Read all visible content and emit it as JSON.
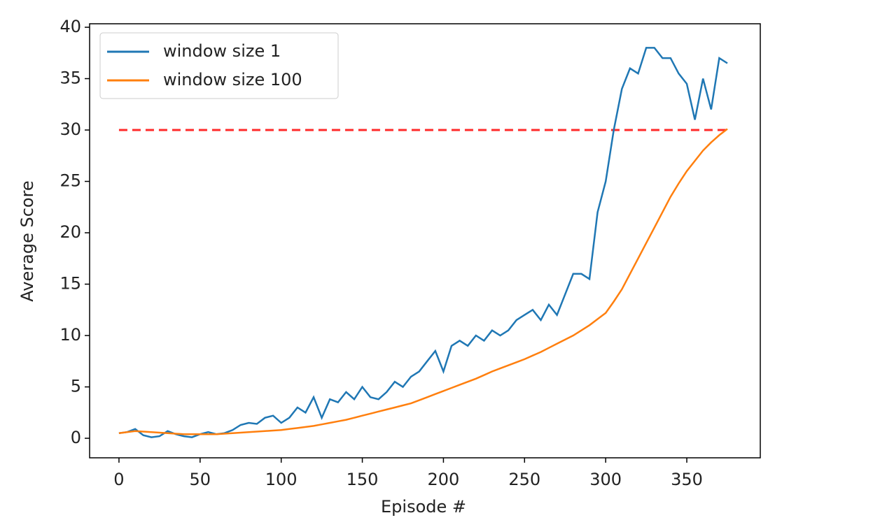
{
  "chart_data": {
    "type": "line",
    "xlabel": "Episode #",
    "ylabel": "Average Score",
    "x": [
      0,
      5,
      10,
      15,
      20,
      25,
      30,
      35,
      40,
      45,
      50,
      55,
      60,
      65,
      70,
      75,
      80,
      85,
      90,
      95,
      100,
      105,
      110,
      115,
      120,
      125,
      130,
      135,
      140,
      145,
      150,
      155,
      160,
      165,
      170,
      175,
      180,
      185,
      190,
      195,
      200,
      205,
      210,
      215,
      220,
      225,
      230,
      235,
      240,
      245,
      250,
      255,
      260,
      265,
      270,
      275,
      280,
      285,
      290,
      295,
      300,
      305,
      310,
      315,
      320,
      325,
      330,
      335,
      340,
      345,
      350,
      355,
      360,
      365,
      370,
      375
    ],
    "series": [
      {
        "name": "window size 1",
        "color": "#1f77b4",
        "values": [
          0.5,
          0.6,
          0.9,
          0.3,
          0.1,
          0.2,
          0.7,
          0.4,
          0.2,
          0.1,
          0.4,
          0.6,
          0.4,
          0.5,
          0.8,
          1.3,
          1.5,
          1.4,
          2.0,
          2.2,
          1.5,
          2.0,
          3.0,
          2.5,
          4.0,
          2.0,
          3.8,
          3.5,
          4.5,
          3.8,
          5.0,
          4.0,
          3.8,
          4.5,
          5.5,
          5.0,
          6.0,
          6.5,
          7.5,
          8.5,
          6.5,
          9.0,
          9.5,
          9.0,
          10.0,
          9.5,
          10.5,
          10.0,
          10.5,
          11.5,
          12.0,
          12.5,
          11.5,
          13.0,
          12.0,
          14.0,
          16.0,
          16.0,
          15.5,
          22,
          25,
          30,
          34,
          36,
          35.5,
          38,
          38,
          37,
          37,
          35.5,
          34.5,
          31,
          35,
          32,
          37,
          36.5
        ]
      },
      {
        "name": "window size 100",
        "color": "#ff7f0e",
        "values": [
          0.5,
          0.6,
          0.7,
          0.65,
          0.6,
          0.55,
          0.5,
          0.45,
          0.4,
          0.4,
          0.4,
          0.4,
          0.4,
          0.45,
          0.5,
          0.55,
          0.6,
          0.65,
          0.7,
          0.75,
          0.8,
          0.9,
          1.0,
          1.1,
          1.2,
          1.35,
          1.5,
          1.65,
          1.8,
          2.0,
          2.2,
          2.4,
          2.6,
          2.8,
          3.0,
          3.2,
          3.4,
          3.7,
          4.0,
          4.3,
          4.6,
          4.9,
          5.2,
          5.5,
          5.8,
          6.15,
          6.5,
          6.8,
          7.1,
          7.4,
          7.7,
          8.05,
          8.4,
          8.8,
          9.2,
          9.6,
          10.0,
          10.5,
          11.0,
          11.6,
          12.2,
          13.3,
          14.5,
          16.0,
          17.5,
          19.0,
          20.5,
          22.0,
          23.5,
          24.8,
          26.0,
          27.0,
          28.0,
          28.8,
          29.5,
          30.1
        ]
      }
    ],
    "threshold": 30,
    "threshold_color": "#ff2a2a",
    "xlim": [
      -18.1,
      395.3
    ],
    "xticks": [
      0,
      50,
      100,
      150,
      200,
      250,
      300,
      350
    ],
    "ylim": [
      -1.9,
      40.34
    ],
    "yticks": [
      0,
      5,
      10,
      15,
      20,
      25,
      30,
      35,
      40
    ],
    "legend": "upper left"
  }
}
